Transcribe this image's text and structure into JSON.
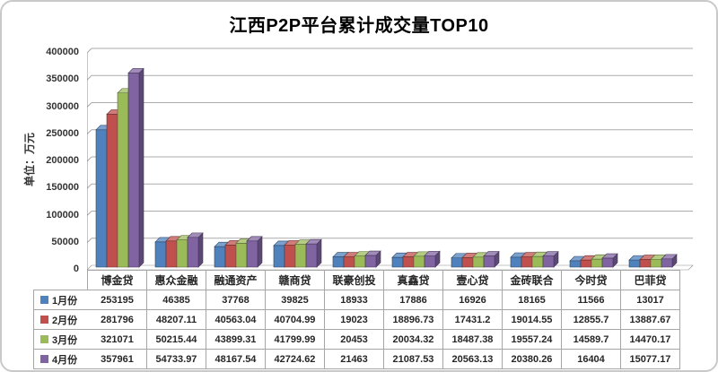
{
  "chart_data": {
    "type": "bar",
    "title": "江西P2P平台累计成交量TOP10",
    "ylabel": "单位：万元",
    "xlabel": "",
    "ylim": [
      0,
      400000
    ],
    "ytick_step": 50000,
    "grid": true,
    "style": "3d-clustered-column",
    "legend_position": "data-table-left",
    "categories": [
      "博金贷",
      "惠众金融",
      "融通资产",
      "赣商贷",
      "联豪创投",
      "真鑫贷",
      "壹心贷",
      "金砖联合",
      "今时贷",
      "巴菲贷"
    ],
    "series": [
      {
        "name": "1月份",
        "color": "#4F81BD",
        "values": [
          253195,
          46385,
          37768,
          39825,
          18933,
          17886,
          16926,
          18165,
          11566,
          13017
        ]
      },
      {
        "name": "2月份",
        "color": "#C0504D",
        "values": [
          281796,
          48207.11,
          40563.04,
          40704.99,
          19023,
          18896.73,
          17431.2,
          19014.55,
          12855.7,
          13887.67
        ]
      },
      {
        "name": "3月份",
        "color": "#9BBB59",
        "values": [
          321071,
          50215.44,
          43899.31,
          41799.99,
          20453,
          20034.32,
          18487.38,
          19557.24,
          14589.7,
          14470.17
        ]
      },
      {
        "name": "4月份",
        "color": "#8064A2",
        "values": [
          357961,
          54733.97,
          48167.54,
          42724.62,
          21463,
          21087.53,
          20563.13,
          20380.26,
          16404,
          15077.17
        ]
      }
    ],
    "colors": {
      "gridline": "#ABABAB",
      "axis": "#8C8C8C",
      "table_border": "#A6A6A6",
      "text": "#262626"
    }
  }
}
